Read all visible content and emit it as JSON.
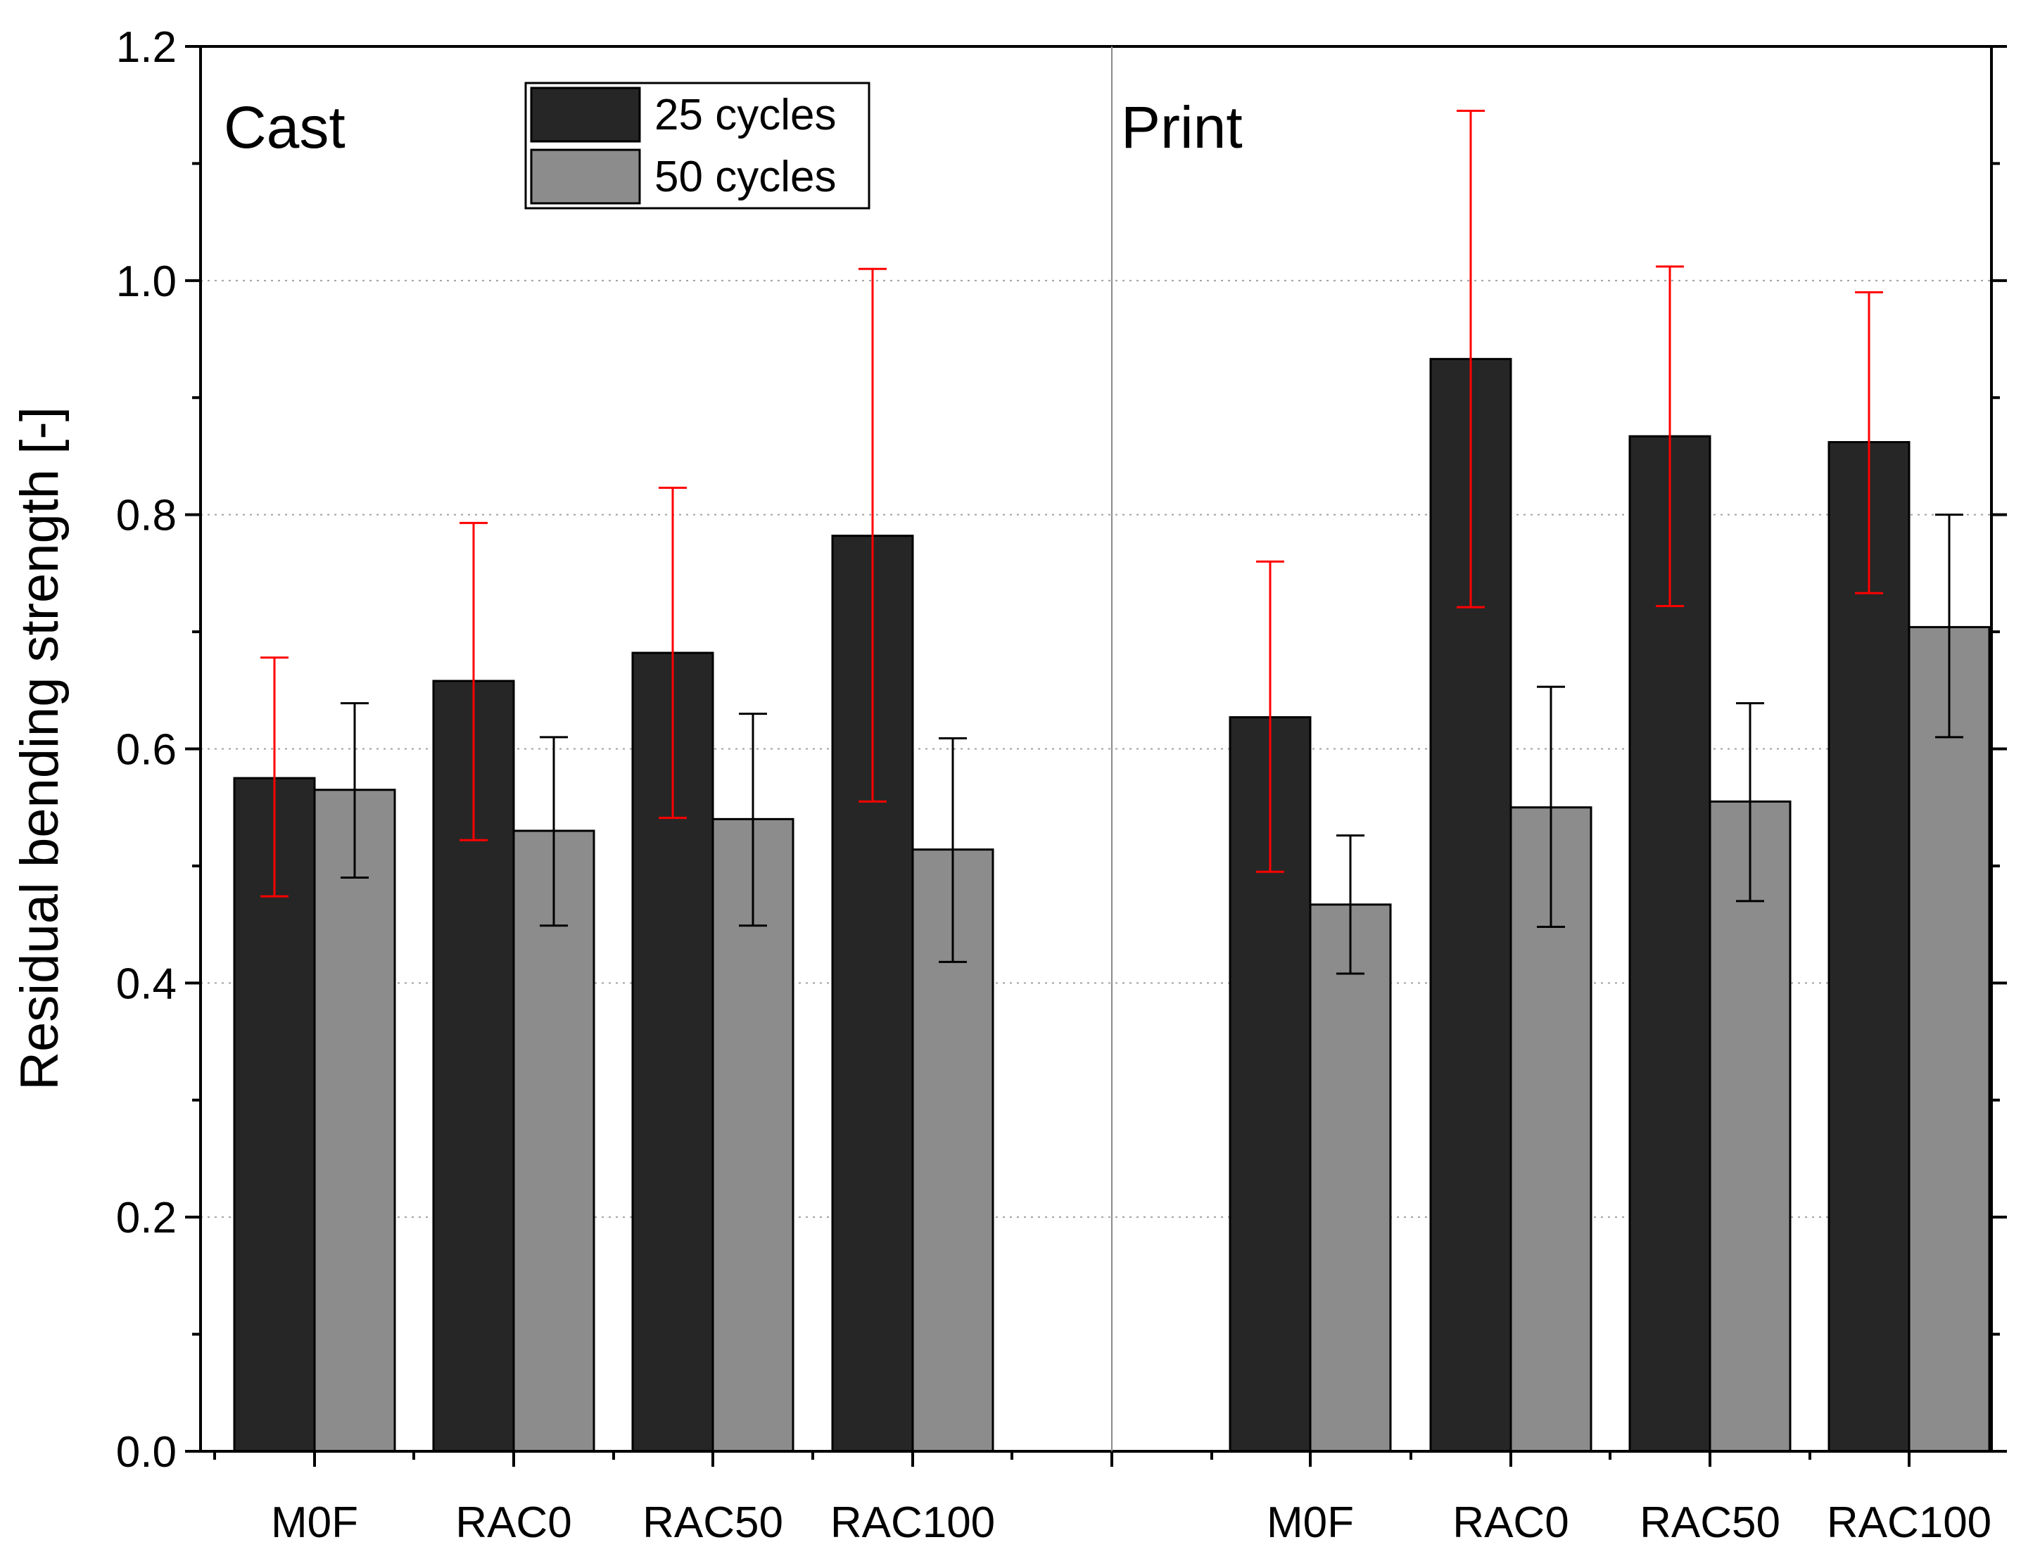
{
  "chart_data": {
    "type": "bar",
    "title": "",
    "xlabel": "",
    "ylabel": "Residual bending strength [-]",
    "ylim": [
      0,
      1.2
    ],
    "yticks": [
      "0.0",
      "0.2",
      "0.4",
      "0.6",
      "0.8",
      "1.0",
      "1.2"
    ],
    "grid": "horizontal dotted at 0.2 steps",
    "legend_position": "top, inside Cast panel",
    "groups": [
      {
        "label": "Cast",
        "categories": [
          "M0F",
          "RAC0",
          "RAC50",
          "RAC100"
        ],
        "series": [
          {
            "name": "25 cycles",
            "values": [
              0.575,
              0.658,
              0.682,
              0.782
            ],
            "err_low": [
              0.474,
              0.522,
              0.541,
              0.555
            ],
            "err_high": [
              0.678,
              0.793,
              0.823,
              1.01
            ]
          },
          {
            "name": "50 cycles",
            "values": [
              0.565,
              0.53,
              0.54,
              0.514
            ],
            "err_low": [
              0.49,
              0.449,
              0.449,
              0.418
            ],
            "err_high": [
              0.639,
              0.61,
              0.63,
              0.609
            ]
          }
        ]
      },
      {
        "label": "Print",
        "categories": [
          "M0F",
          "RAC0",
          "RAC50",
          "RAC100"
        ],
        "series": [
          {
            "name": "25 cycles",
            "values": [
              0.627,
              0.933,
              0.867,
              0.862
            ],
            "err_low": [
              0.495,
              0.721,
              0.722,
              0.733
            ],
            "err_high": [
              0.76,
              1.145,
              1.012,
              0.99
            ]
          },
          {
            "name": "50 cycles",
            "values": [
              0.467,
              0.55,
              0.555,
              0.704
            ],
            "err_low": [
              0.408,
              0.448,
              0.47,
              0.61
            ],
            "err_high": [
              0.526,
              0.653,
              0.639,
              0.8
            ]
          }
        ]
      }
    ],
    "legend": [
      "25 cycles",
      "50 cycles"
    ],
    "colors": {
      "series_25": "#262626",
      "series_50": "#8c8c8c",
      "err_25": "#ff0000",
      "err_50": "#000000",
      "grid": "#a0a0a0"
    }
  }
}
